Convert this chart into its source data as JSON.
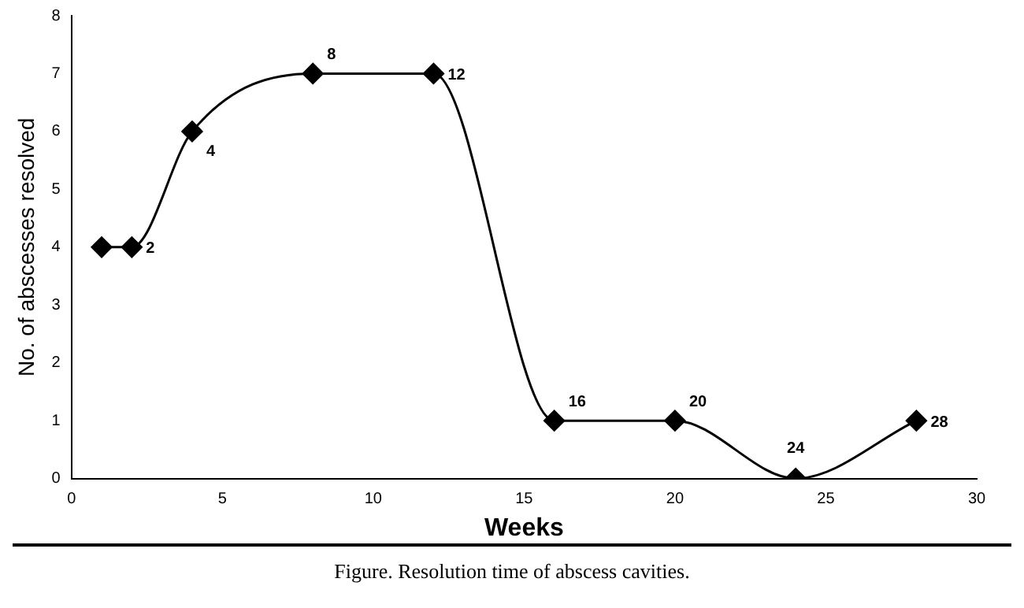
{
  "chart_data": {
    "type": "line",
    "xlabel": "Weeks",
    "ylabel": "No. of abscesses resolved",
    "x": [
      1,
      2,
      4,
      8,
      12,
      16,
      20,
      24,
      28
    ],
    "values": [
      4,
      4,
      6,
      7,
      7,
      1,
      1,
      0,
      1
    ],
    "color": "#000000",
    "marker": "diamond",
    "line_style": "solid",
    "grid": false,
    "legend": false,
    "xlim": [
      0,
      30
    ],
    "xticks": [
      0,
      5,
      10,
      15,
      20,
      25,
      30
    ],
    "ylim": [
      0,
      8
    ],
    "yticks": [
      0,
      1,
      2,
      3,
      4,
      5,
      6,
      7,
      8
    ],
    "annotations": [
      {
        "text": "2",
        "x": 2,
        "y": 4
      },
      {
        "text": "4",
        "x": 4,
        "y": 6
      },
      {
        "text": "8",
        "x": 8,
        "y": 7
      },
      {
        "text": "12",
        "x": 12,
        "y": 7
      },
      {
        "text": "16",
        "x": 16,
        "y": 1
      },
      {
        "text": "20",
        "x": 20,
        "y": 1
      },
      {
        "text": "24",
        "x": 24,
        "y": 0
      },
      {
        "text": "28",
        "x": 28,
        "y": 1
      },
      "Figure. Resolution time of abscess cavities."
    ]
  }
}
